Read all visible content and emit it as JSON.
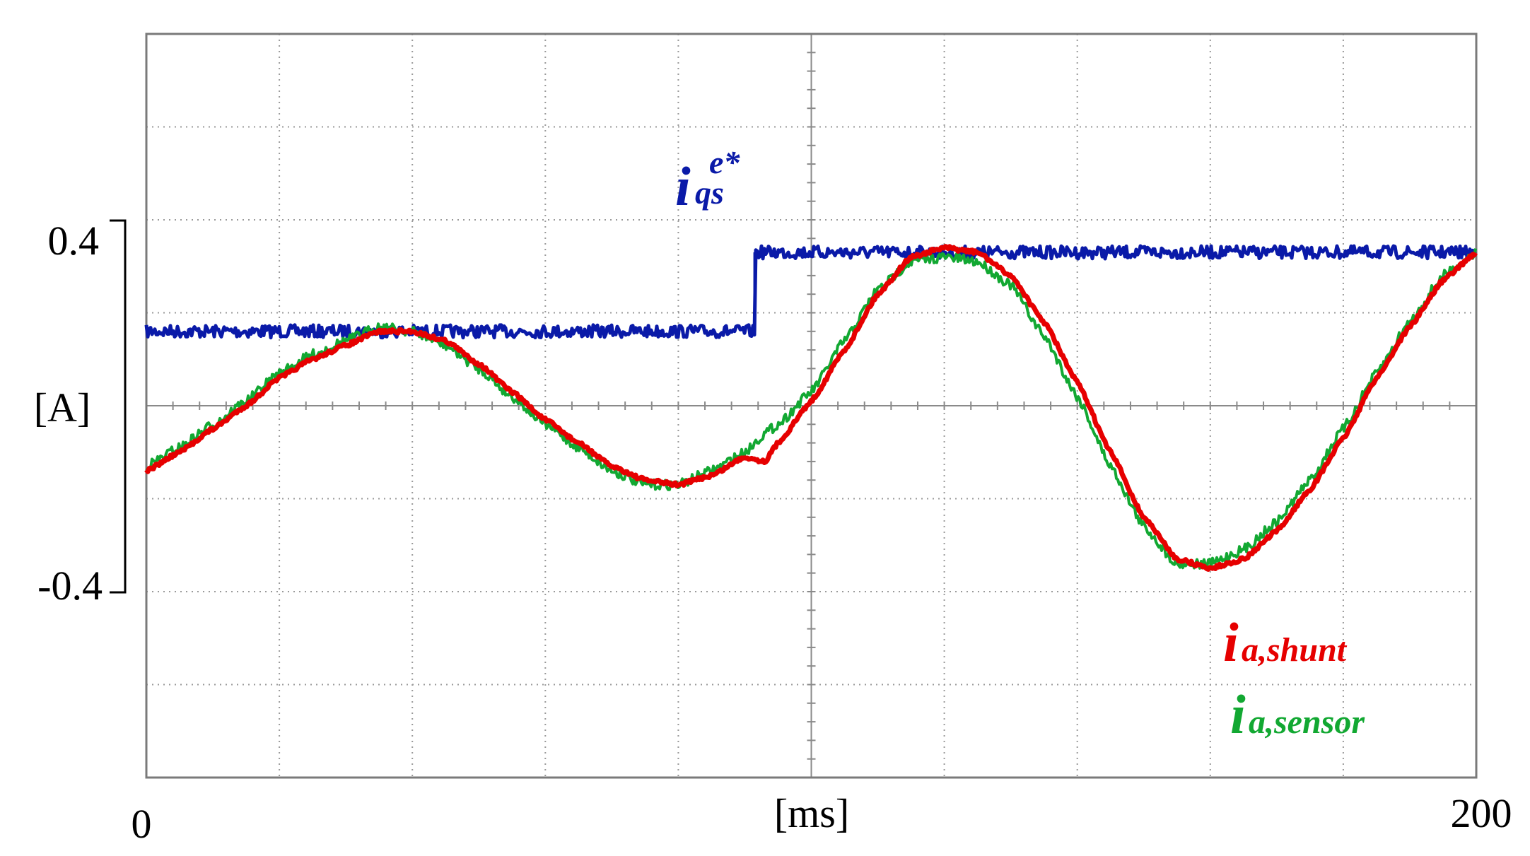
{
  "chart_data": {
    "type": "line",
    "xlabel": "[ms]",
    "ylabel": "[A]",
    "xlim": [
      0,
      200
    ],
    "ylim": [
      -0.8,
      0.8
    ],
    "x_tick_labels": [
      "0",
      "200"
    ],
    "y_tick_labels": [
      "0.4",
      "-0.4"
    ],
    "grid": true,
    "series": [
      {
        "name": "i_qs^e*",
        "label_main": "i",
        "label_sub": "qs",
        "label_sup": "e*",
        "color": "#0a1aa8",
        "style": "step",
        "points": [
          [
            0,
            0.16
          ],
          [
            91.5,
            0.16
          ],
          [
            91.5,
            0.33
          ],
          [
            200,
            0.33
          ]
        ]
      },
      {
        "name": "i_a,shunt",
        "label_main": "i",
        "label_sub": "a,shunt",
        "color": "#e60000",
        "points": [
          [
            0,
            -0.14
          ],
          [
            5,
            -0.1
          ],
          [
            10,
            -0.05
          ],
          [
            15,
            0.0
          ],
          [
            20,
            0.06
          ],
          [
            25,
            0.1
          ],
          [
            30,
            0.13
          ],
          [
            35,
            0.16
          ],
          [
            40,
            0.16
          ],
          [
            45,
            0.14
          ],
          [
            50,
            0.09
          ],
          [
            55,
            0.03
          ],
          [
            60,
            -0.03
          ],
          [
            65,
            -0.08
          ],
          [
            70,
            -0.13
          ],
          [
            75,
            -0.16
          ],
          [
            80,
            -0.17
          ],
          [
            85,
            -0.15
          ],
          [
            90,
            -0.11
          ],
          [
            93,
            -0.12
          ],
          [
            95,
            -0.08
          ],
          [
            100,
            0.01
          ],
          [
            105,
            0.12
          ],
          [
            110,
            0.24
          ],
          [
            115,
            0.32
          ],
          [
            120,
            0.34
          ],
          [
            125,
            0.33
          ],
          [
            130,
            0.28
          ],
          [
            135,
            0.18
          ],
          [
            140,
            0.05
          ],
          [
            145,
            -0.1
          ],
          [
            150,
            -0.24
          ],
          [
            155,
            -0.33
          ],
          [
            160,
            -0.35
          ],
          [
            165,
            -0.33
          ],
          [
            170,
            -0.27
          ],
          [
            175,
            -0.18
          ],
          [
            180,
            -0.07
          ],
          [
            185,
            0.06
          ],
          [
            190,
            0.17
          ],
          [
            195,
            0.27
          ],
          [
            200,
            0.33
          ]
        ]
      },
      {
        "name": "i_a,sensor",
        "label_main": "i",
        "label_sub": "a,sensor",
        "color": "#12a832",
        "points": [
          [
            0,
            -0.13
          ],
          [
            5,
            -0.09
          ],
          [
            10,
            -0.04
          ],
          [
            15,
            0.01
          ],
          [
            20,
            0.07
          ],
          [
            25,
            0.11
          ],
          [
            30,
            0.14
          ],
          [
            35,
            0.17
          ],
          [
            40,
            0.16
          ],
          [
            45,
            0.13
          ],
          [
            50,
            0.08
          ],
          [
            55,
            0.02
          ],
          [
            60,
            -0.04
          ],
          [
            65,
            -0.09
          ],
          [
            70,
            -0.14
          ],
          [
            75,
            -0.17
          ],
          [
            80,
            -0.17
          ],
          [
            85,
            -0.14
          ],
          [
            90,
            -0.1
          ],
          [
            93,
            -0.06
          ],
          [
            95,
            -0.04
          ],
          [
            100,
            0.03
          ],
          [
            105,
            0.14
          ],
          [
            110,
            0.25
          ],
          [
            115,
            0.31
          ],
          [
            120,
            0.32
          ],
          [
            125,
            0.31
          ],
          [
            130,
            0.26
          ],
          [
            135,
            0.15
          ],
          [
            140,
            0.02
          ],
          [
            145,
            -0.13
          ],
          [
            150,
            -0.26
          ],
          [
            155,
            -0.34
          ],
          [
            160,
            -0.34
          ],
          [
            165,
            -0.31
          ],
          [
            170,
            -0.25
          ],
          [
            175,
            -0.16
          ],
          [
            180,
            -0.05
          ],
          [
            185,
            0.07
          ],
          [
            190,
            0.18
          ],
          [
            195,
            0.28
          ],
          [
            200,
            0.33
          ]
        ]
      }
    ]
  }
}
